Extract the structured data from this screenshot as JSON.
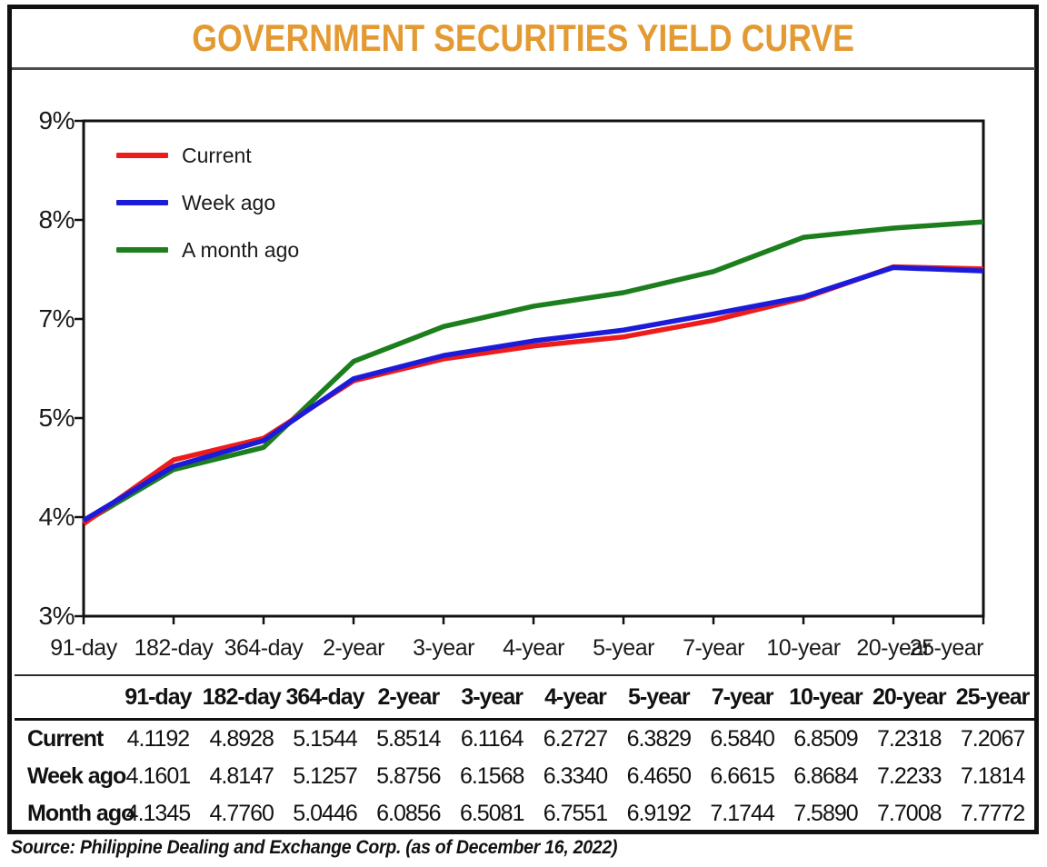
{
  "title": "GOVERNMENT SECURITIES YIELD CURVE",
  "source_note": "Source: Philippine Dealing and Exchange Corp. (as of December 16, 2022)",
  "colors": {
    "title_accent": "#e49a33",
    "current_line": "#ee1b1b",
    "week_ago_line": "#1b1bd9",
    "month_ago_line": "#1c7e1c"
  },
  "chart_data": {
    "type": "line",
    "title": "GOVERNMENT SECURITIES YIELD CURVE",
    "xlabel": "",
    "ylabel": "",
    "ylim": [
      3,
      9
    ],
    "grid": false,
    "legend_position": "top-left",
    "ytick_labels": [
      "9%",
      "8%",
      "7%",
      "5%",
      "4%",
      "3%"
    ],
    "categories": [
      "91-day",
      "182-day",
      "364-day",
      "2-year",
      "3-year",
      "4-year",
      "5-year",
      "7-year",
      "10-year",
      "20-year",
      "25-year"
    ],
    "series": [
      {
        "name": "Current",
        "color": "#ee1b1b",
        "values": [
          4.1192,
          4.8928,
          5.1544,
          5.8514,
          6.1164,
          6.2727,
          6.3829,
          6.584,
          6.8509,
          7.2318,
          7.2067
        ]
      },
      {
        "name": "Week ago",
        "color": "#1b1bd9",
        "values": [
          4.1601,
          4.8147,
          5.1257,
          5.8756,
          6.1568,
          6.334,
          6.465,
          6.6615,
          6.8684,
          7.2233,
          7.1814
        ]
      },
      {
        "name": "A month ago",
        "color": "#1c7e1c",
        "values": [
          4.1345,
          4.776,
          5.0446,
          6.0856,
          6.5081,
          6.7551,
          6.9192,
          7.1744,
          7.589,
          7.7008,
          7.7772
        ]
      }
    ]
  },
  "table": {
    "corner_label": "",
    "rows": [
      {
        "label": "Current",
        "values": [
          "4.1192",
          "4.8928",
          "5.1544",
          "5.8514",
          "6.1164",
          "6.2727",
          "6.3829",
          "6.5840",
          "6.8509",
          "7.2318",
          "7.2067"
        ]
      },
      {
        "label": "Week ago",
        "values": [
          "4.1601",
          "4.8147",
          "5.1257",
          "5.8756",
          "6.1568",
          "6.3340",
          "6.4650",
          "6.6615",
          "6.8684",
          "7.2233",
          "7.1814"
        ]
      },
      {
        "label": "Month ago",
        "values": [
          "4.1345",
          "4.7760",
          "5.0446",
          "6.0856",
          "6.5081",
          "6.7551",
          "6.9192",
          "7.1744",
          "7.5890",
          "7.7008",
          "7.7772"
        ]
      }
    ]
  }
}
